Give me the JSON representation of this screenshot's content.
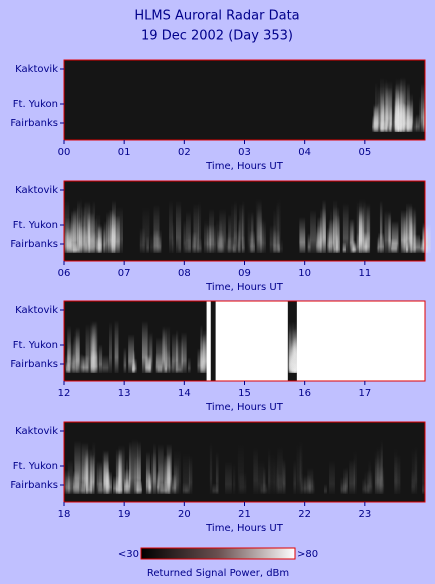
{
  "header": {
    "title": "HLMS Auroral Radar Data",
    "subtitle": "19 Dec 2002 (Day 353)"
  },
  "chart_data": [
    {
      "type": "heatmap",
      "xlabel": "Time, Hours UT",
      "categories": [
        "Kaktovik",
        "Ft. Yukon",
        "Fairbanks"
      ],
      "xlim": [
        0,
        6
      ],
      "xticks": [
        {
          "value": 0,
          "label": "00"
        },
        {
          "value": 1,
          "label": "01"
        },
        {
          "value": 2,
          "label": "02"
        },
        {
          "value": 3,
          "label": "03"
        },
        {
          "value": 4,
          "label": "04"
        },
        {
          "value": 5,
          "label": "05"
        }
      ],
      "color": "#e00000"
    },
    {
      "type": "heatmap",
      "xlabel": "Time, Hours UT",
      "categories": [
        "Kaktovik",
        "Ft. Yukon",
        "Fairbanks"
      ],
      "xlim": [
        6,
        12
      ],
      "xticks": [
        {
          "value": 6,
          "label": "06"
        },
        {
          "value": 7,
          "label": "07"
        },
        {
          "value": 8,
          "label": "08"
        },
        {
          "value": 9,
          "label": "09"
        },
        10,
        11
      ],
      "color": "#e00000"
    },
    {
      "type": "heatmap",
      "xlabel": "Time, Hours UT",
      "categories": [
        "Kaktovik",
        "Ft. Yukon",
        "Fairbanks"
      ],
      "xlim": [
        12,
        18
      ],
      "xticks": [
        12,
        13,
        14,
        15,
        16,
        17
      ],
      "color": "#e00000"
    },
    {
      "type": "heatmap",
      "xlabel": "Time, Hours UT",
      "categories": [
        "Kaktovik",
        "Ft. Yukon",
        "Fairbanks"
      ],
      "xlim": [
        18,
        24
      ],
      "xticks": [
        18,
        19,
        20,
        21,
        22,
        23
      ],
      "color": "#e00000"
    }
  ],
  "colorbar": {
    "label": "Returned Signal Power, dBm",
    "lim": [
      30,
      80
    ],
    "ticks": [
      {
        "value": 30,
        "label": "<30"
      },
      {
        "value": 80,
        "label": ">80"
      }
    ]
  }
}
